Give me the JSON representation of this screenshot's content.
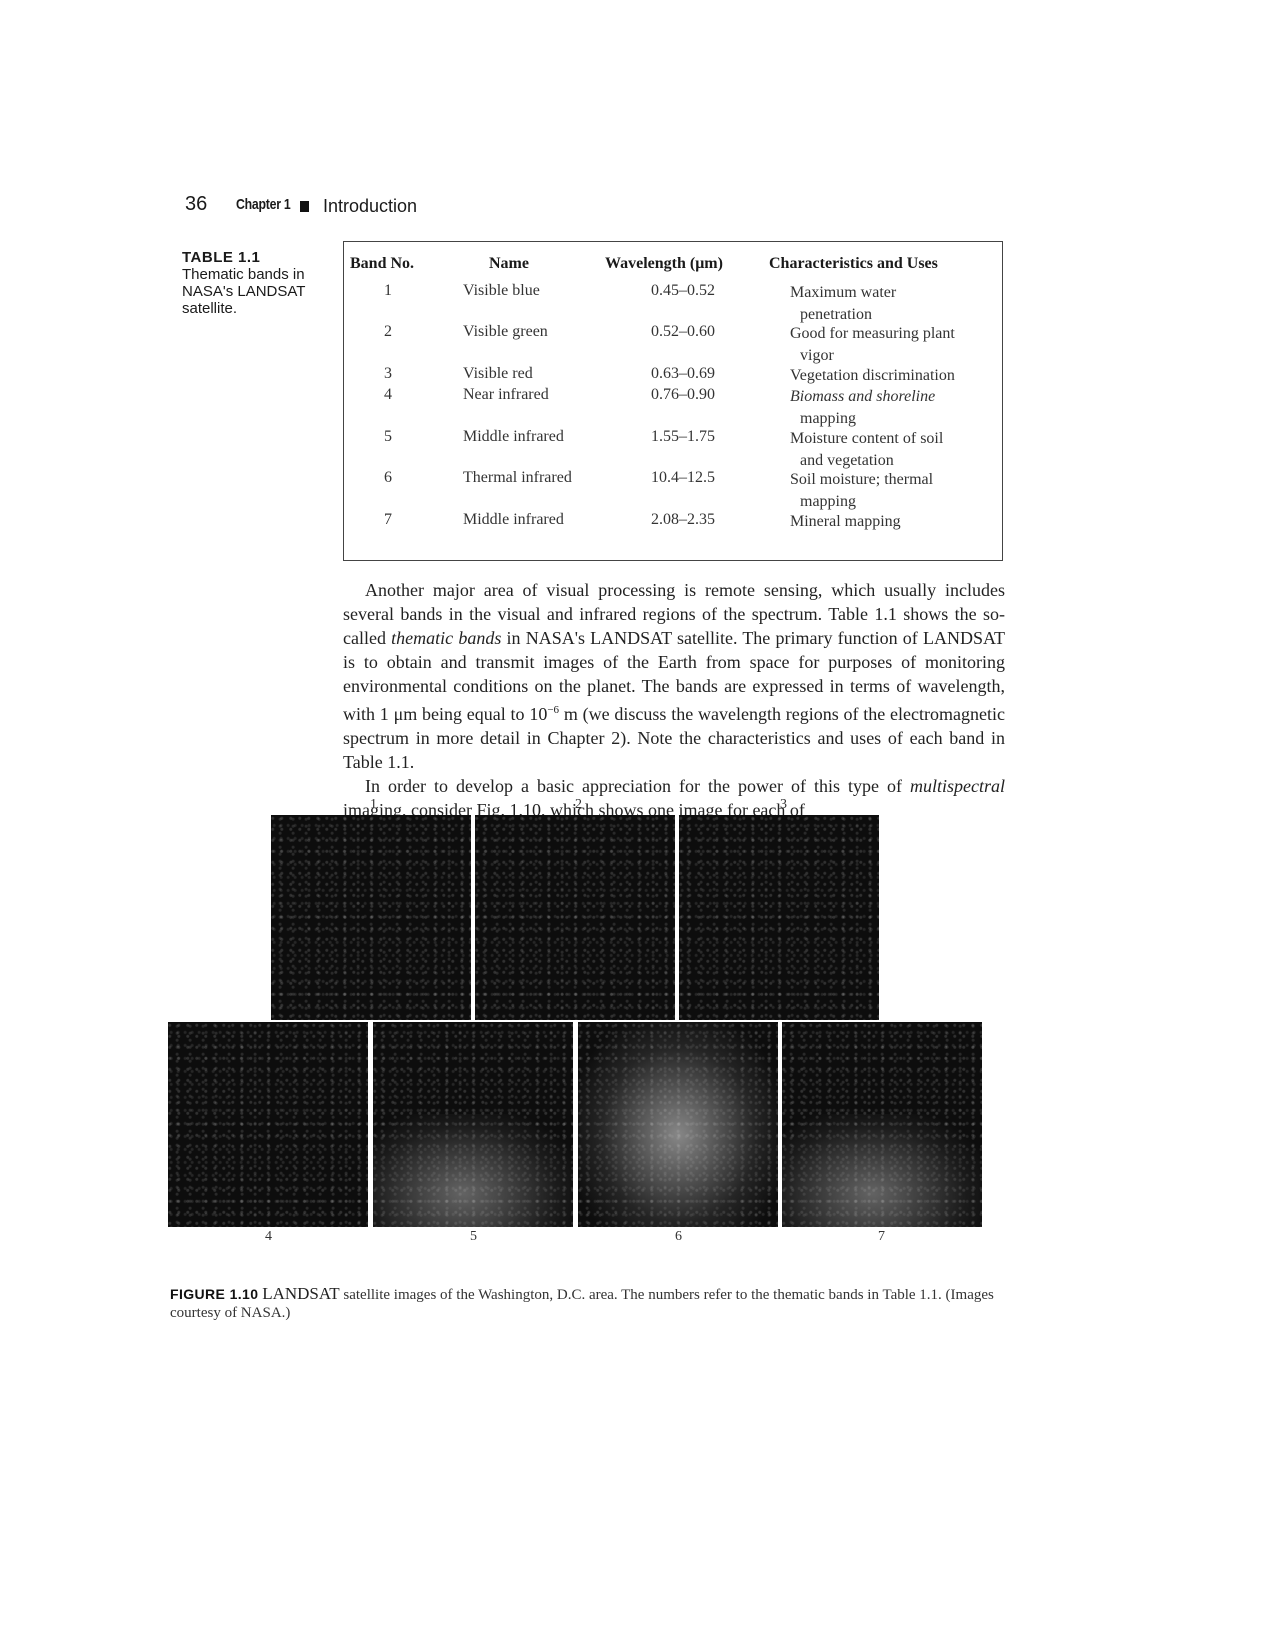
{
  "header": {
    "page_number": "36",
    "chapter": "Chapter 1",
    "title": "Introduction"
  },
  "table": {
    "caption_number": "TABLE 1.1",
    "caption_text": "Thematic bands in NASA's LANDSAT satellite.",
    "columns": [
      "Band No.",
      "Name",
      "Wavelength (μm)",
      "Characteristics and Uses"
    ],
    "rows": [
      {
        "band": "1",
        "name": "Visible blue",
        "wavelength": "0.45–0.52",
        "use_1": "Maximum water",
        "use_2": "penetration"
      },
      {
        "band": "2",
        "name": "Visible green",
        "wavelength": "0.52–0.60",
        "use_1": "Good for measuring plant",
        "use_2": "vigor"
      },
      {
        "band": "3",
        "name": "Visible red",
        "wavelength": "0.63–0.69",
        "use_1": "Vegetation discrimination",
        "use_2": ""
      },
      {
        "band": "4",
        "name": "Near infrared",
        "wavelength": "0.76–0.90",
        "use_1": "Biomass and shoreline",
        "use_2": "mapping"
      },
      {
        "band": "5",
        "name": "Middle infrared",
        "wavelength": "1.55–1.75",
        "use_1": "Moisture content of soil",
        "use_2": "and vegetation"
      },
      {
        "band": "6",
        "name": "Thermal infrared",
        "wavelength": "10.4–12.5",
        "use_1": "Soil moisture; thermal",
        "use_2": "mapping"
      },
      {
        "band": "7",
        "name": "Middle infrared",
        "wavelength": "2.08–2.35",
        "use_1": "Mineral mapping",
        "use_2": ""
      }
    ]
  },
  "body": {
    "p1_a": "Another major area of visual processing is remote sensing, which usually includes several bands in the visual and infrared regions of the spectrum. Table 1.1 shows the so-called ",
    "p1_em": "thematic bands",
    "p1_b": " in NASA's LANDSAT satellite. The primary function of LANDSAT is to obtain and transmit images of the Earth from space for purposes of monitoring environmental conditions on the planet. The bands are expressed in terms of wavelength, with 1 μm being equal to 10",
    "p1_sup": "−6",
    "p1_c": " m (we discuss the wavelength regions of the electromagnetic spectrum in more detail in Chapter 2). Note the characteristics and uses of each band in Table 1.1.",
    "p2_a": "In order to develop a basic appreciation for the power of this type of ",
    "p2_em": "multispectral",
    "p2_b": " imaging, consider Fig. 1.10, which shows one image for each of"
  },
  "figure": {
    "labels": [
      "1",
      "2",
      "3",
      "4",
      "5",
      "6",
      "7"
    ],
    "caption_number": "FIGURE 1.10",
    "caption_main": "LANDSAT",
    "caption_rest": " satellite images of the Washington, D.C. area. The numbers refer to the thematic bands in Table 1.1. (Images courtesy of NASA.)"
  }
}
